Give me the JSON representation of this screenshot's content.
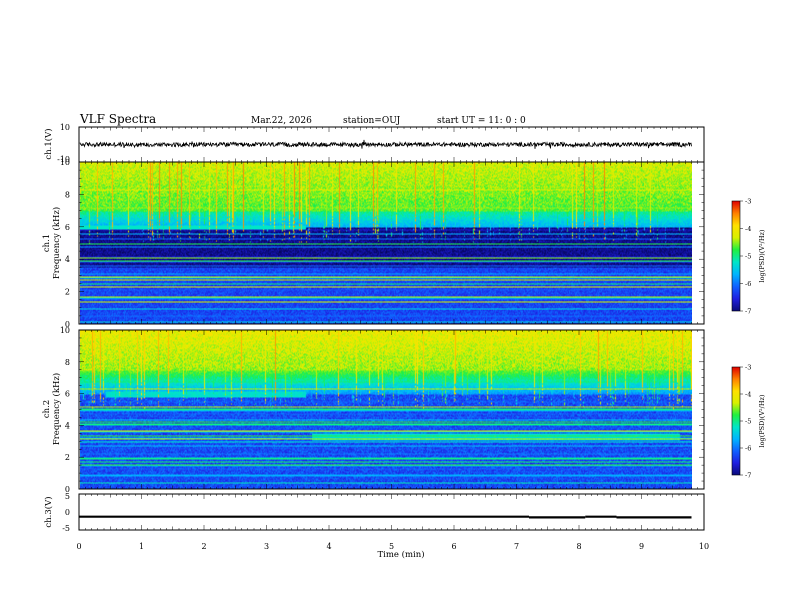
{
  "header": {
    "title": "VLF Spectra",
    "date": "Mar.22, 2026",
    "station": "station=OUJ",
    "start_time": "start UT =  11: 0  : 0"
  },
  "colors": {
    "colormap": [
      "#000000",
      "#0a0a7a",
      "#1f1fe0",
      "#1060ff",
      "#00b4ff",
      "#00e6c8",
      "#20f040",
      "#d8f000",
      "#ffe000",
      "#ff8000",
      "#e00000",
      "#ffffff"
    ]
  },
  "chart_data": [
    {
      "type": "line",
      "id": "ch1-waveform",
      "ylabel": "ch.1(V)",
      "xlim": [
        0,
        10
      ],
      "ylim": [
        -10,
        10
      ],
      "yticks": [
        "10",
        "-10"
      ],
      "description_values": {
        "center": 0,
        "amplitude_range": [
          -1.5,
          1.5
        ],
        "end_min": 9.8
      }
    },
    {
      "type": "heatmap",
      "id": "ch1-spectrogram",
      "ylabel": "ch.1 Frequency (kHz)",
      "xlim": [
        0,
        10
      ],
      "ylim": [
        0,
        10
      ],
      "yticks": [
        "0",
        "2",
        "4",
        "6",
        "8",
        "10"
      ],
      "colorbar_label": "log(PSD)(V²/Hz)",
      "colorbar_ticks": [
        "-3",
        "-4",
        "-5",
        "-6",
        "-7"
      ],
      "colorbar_range": [
        -7,
        -3
      ],
      "features": {
        "band_khz": 6,
        "band_end_min": 3.6,
        "data_end_min": 9.8
      }
    },
    {
      "type": "heatmap",
      "id": "ch2-spectrogram",
      "ylabel": "ch.2 Frequency (kHz)",
      "xlim": [
        0,
        10
      ],
      "ylim": [
        0,
        10
      ],
      "yticks": [
        "0",
        "2",
        "4",
        "6",
        "8",
        "10"
      ],
      "colorbar_label": "log(PSD)(V²/Hz)",
      "colorbar_ticks": [
        "-3",
        "-4",
        "-5",
        "-6",
        "-7"
      ],
      "colorbar_range": [
        -7,
        -3
      ],
      "features": {
        "band1_khz": 6,
        "band1_range_min": [
          0.4,
          3.6
        ],
        "band2_khz": 3.3,
        "band2_range_min": [
          3.7,
          9.6
        ],
        "data_end_min": 9.8
      }
    },
    {
      "type": "line",
      "id": "ch3-waveform",
      "ylabel": "ch.3(V)",
      "xlim": [
        0,
        10
      ],
      "ylim": [
        -5,
        5
      ],
      "yticks": [
        "5",
        "0",
        "-5"
      ],
      "segments": [
        {
          "x0": 0,
          "x1": 7.2,
          "y": -1.3
        },
        {
          "x0": 7.2,
          "x1": 8.1,
          "y": -1.5
        },
        {
          "x0": 8.1,
          "x1": 8.6,
          "y": -1.3
        },
        {
          "x0": 8.6,
          "x1": 9.8,
          "y": -1.5
        }
      ]
    }
  ],
  "xaxis": {
    "label": "Time (min)",
    "ticks": [
      "0",
      "1",
      "2",
      "3",
      "4",
      "5",
      "6",
      "7",
      "8",
      "9",
      "10"
    ]
  }
}
